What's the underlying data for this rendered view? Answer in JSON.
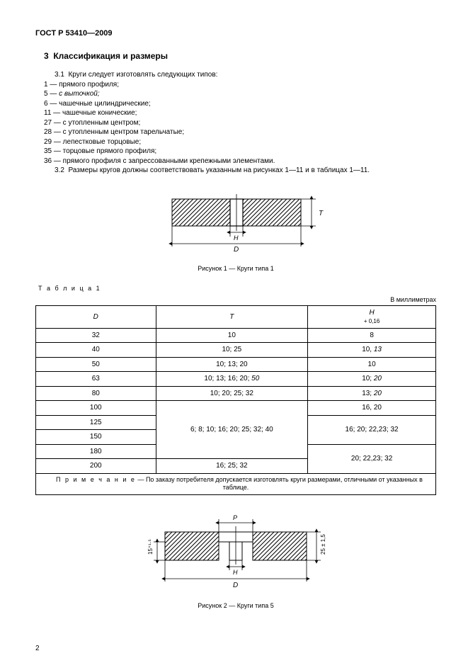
{
  "doc_id": "ГОСТ Р 53410—2009",
  "section": {
    "number": "3",
    "title": "Классификация и размеры"
  },
  "p1_lead": "3.1",
  "p1_text": "Круги следует изготовлять следующих типов:",
  "types": [
    {
      "num": "1",
      "sep": " — ",
      "desc": "прямого профиля;"
    },
    {
      "num": "5",
      "sep": " — ",
      "desc": "с выточкой;",
      "italic": true
    },
    {
      "num": "6",
      "sep": " — ",
      "desc": "чашечные цилиндрические;"
    },
    {
      "num": "11",
      "sep": " — ",
      "desc": "чашечные конические;"
    },
    {
      "num": "27",
      "sep": " — ",
      "desc": "с утопленным центром;"
    },
    {
      "num": "28",
      "sep": " — ",
      "desc": "с утопленным центром тарельчатые;"
    },
    {
      "num": "29",
      "sep": " — ",
      "desc": "лепестковые торцовые;"
    },
    {
      "num": "35",
      "sep": " — ",
      "desc": "торцовые прямого профиля;"
    },
    {
      "num": "36",
      "sep": " — ",
      "desc": "прямого профиля с запрессованными крепежными элементами."
    }
  ],
  "p2_lead": "3.2",
  "p2_text": "Размеры кругов должны соответствовать указанным на рисунках 1—11 и в таблицах 1—11.",
  "fig1_caption": "Рисунок 1 — Круги типа 1",
  "fig2_caption": "Рисунок 2 — Круги типа 5",
  "table1_label": "Т а б л и ц а  1",
  "units_label": "В миллиметрах",
  "table1": {
    "cols": {
      "D": "D",
      "T": "T",
      "H": "H",
      "H_sub": "+ 0,16"
    },
    "rows": [
      {
        "D": "32",
        "T": "10",
        "H": "8"
      },
      {
        "D": "40",
        "T": "10; 25",
        "H": "10, 13",
        "H_it": true
      },
      {
        "D": "50",
        "T": "10; 13; 20",
        "H": "10"
      },
      {
        "D": "63",
        "T": "10; 13; 16; 20; 50",
        "T_it_last": true,
        "H": "10; 20",
        "H_it": true
      },
      {
        "D": "80",
        "T": "10; 20; 25; 32",
        "H": "13; 20",
        "H_it": true
      },
      {
        "D": "100",
        "T_merge_start": true,
        "T_merge": "6; 8; 10; 16; 20; 25; 32; 40",
        "H": "16, 20"
      },
      {
        "D": "125",
        "H_merge_start": true,
        "H_merge": "16; 20; 22,23; 32"
      },
      {
        "D": "150"
      },
      {
        "D": "180",
        "H_merge2_start": true,
        "H_merge2": "20; 22,23; 32"
      },
      {
        "D": "200",
        "T_last": "16; 25; 32"
      }
    ],
    "note_lead": "П р и м е ч а н и е",
    "note": " — По заказу потребителя допускается изготовлять круги размерами, отличными от указанных в таблице."
  },
  "fig1_dims": {
    "D": "D",
    "H": "H",
    "T": "T"
  },
  "fig2_dims": {
    "D": "D",
    "H": "H",
    "P": "P",
    "t15": "15⁺¹·⁵",
    "t25": "25 ± 1,5"
  },
  "page_number": "2"
}
